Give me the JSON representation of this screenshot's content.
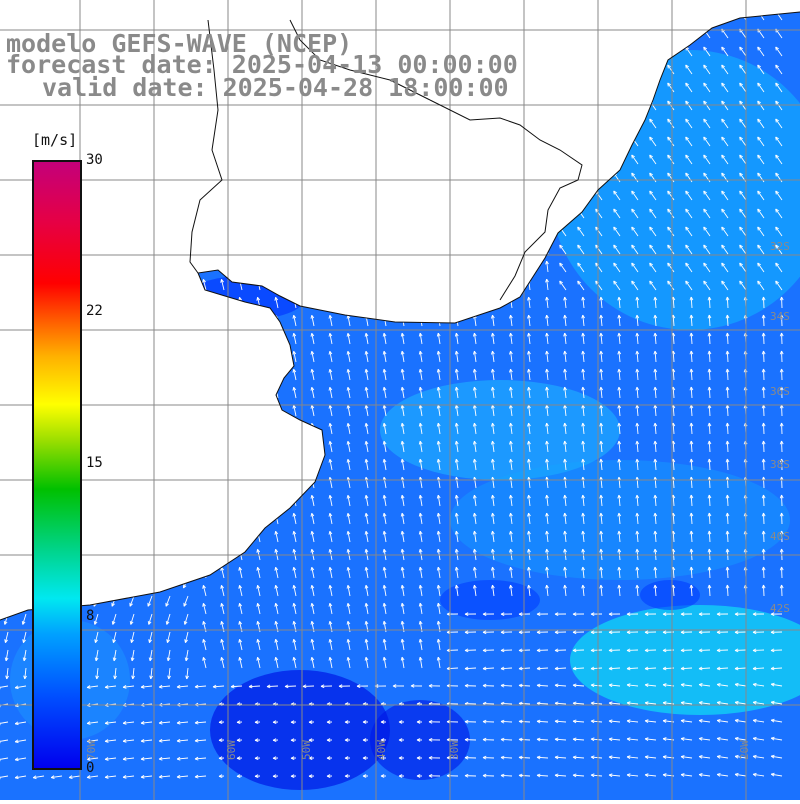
{
  "title": {
    "model": "modelo GEFS-WAVE (NCEP)",
    "forecast_date": "forecast date: 2025-04-13 00:00:00",
    "valid_date": "valid date: 2025-04-28 18:00:00"
  },
  "colorbar": {
    "unit": "[m/s]",
    "ticks": [
      "30",
      "22",
      "15",
      "8",
      "0"
    ]
  },
  "graticule": {
    "latitude_labels": [
      "32S",
      "34S",
      "36S",
      "38S",
      "40S",
      "42S"
    ],
    "longitude_labels": [
      "70W",
      "60W",
      "50W",
      "40W",
      "30W",
      "20W"
    ]
  },
  "colors": {
    "title": "#8a8a8a",
    "land": "#ffffff",
    "grid": "#888888",
    "coast": "#111111",
    "arrows": "#ffffff",
    "ocean_base": "#1a72ff"
  }
}
